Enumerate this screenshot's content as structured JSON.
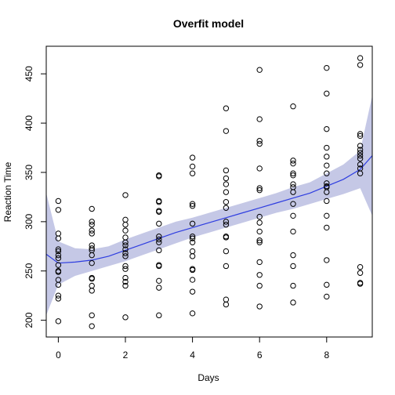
{
  "chart_data": {
    "type": "scatter",
    "title": "Overfit model",
    "xlabel": "Days",
    "ylabel": "Reaction Time",
    "xlim": [
      -0.36,
      9.36
    ],
    "ylim": [
      183,
      478
    ],
    "xticks": [
      0,
      2,
      4,
      6,
      8
    ],
    "yticks": [
      200,
      250,
      300,
      350,
      400,
      450
    ],
    "grid": false,
    "colors": {
      "points": "#000000",
      "fit": "#2e3de0",
      "band": "#c5c8e6"
    },
    "points": [
      {
        "x": 0,
        "y": 199
      },
      {
        "x": 0,
        "y": 222
      },
      {
        "x": 0,
        "y": 225
      },
      {
        "x": 0,
        "y": 236
      },
      {
        "x": 0,
        "y": 241
      },
      {
        "x": 0,
        "y": 249
      },
      {
        "x": 0,
        "y": 250
      },
      {
        "x": 0,
        "y": 256
      },
      {
        "x": 0,
        "y": 263
      },
      {
        "x": 0,
        "y": 266
      },
      {
        "x": 0,
        "y": 270
      },
      {
        "x": 0,
        "y": 272
      },
      {
        "x": 0,
        "y": 283
      },
      {
        "x": 0,
        "y": 288
      },
      {
        "x": 0,
        "y": 312
      },
      {
        "x": 0,
        "y": 321
      },
      {
        "x": 1,
        "y": 194
      },
      {
        "x": 1,
        "y": 205
      },
      {
        "x": 1,
        "y": 230
      },
      {
        "x": 1,
        "y": 235
      },
      {
        "x": 1,
        "y": 242
      },
      {
        "x": 1,
        "y": 243
      },
      {
        "x": 1,
        "y": 258
      },
      {
        "x": 1,
        "y": 266
      },
      {
        "x": 1,
        "y": 271
      },
      {
        "x": 1,
        "y": 273
      },
      {
        "x": 1,
        "y": 276
      },
      {
        "x": 1,
        "y": 288
      },
      {
        "x": 1,
        "y": 291
      },
      {
        "x": 1,
        "y": 297
      },
      {
        "x": 1,
        "y": 300
      },
      {
        "x": 1,
        "y": 313
      },
      {
        "x": 2,
        "y": 203
      },
      {
        "x": 2,
        "y": 235
      },
      {
        "x": 2,
        "y": 239
      },
      {
        "x": 2,
        "y": 243
      },
      {
        "x": 2,
        "y": 252
      },
      {
        "x": 2,
        "y": 255
      },
      {
        "x": 2,
        "y": 265
      },
      {
        "x": 2,
        "y": 268
      },
      {
        "x": 2,
        "y": 272
      },
      {
        "x": 2,
        "y": 276
      },
      {
        "x": 2,
        "y": 279
      },
      {
        "x": 2,
        "y": 284
      },
      {
        "x": 2,
        "y": 291
      },
      {
        "x": 2,
        "y": 297
      },
      {
        "x": 2,
        "y": 302
      },
      {
        "x": 2,
        "y": 327
      },
      {
        "x": 3,
        "y": 205
      },
      {
        "x": 3,
        "y": 233
      },
      {
        "x": 3,
        "y": 240
      },
      {
        "x": 3,
        "y": 255
      },
      {
        "x": 3,
        "y": 256
      },
      {
        "x": 3,
        "y": 271
      },
      {
        "x": 3,
        "y": 279
      },
      {
        "x": 3,
        "y": 282
      },
      {
        "x": 3,
        "y": 285
      },
      {
        "x": 3,
        "y": 298
      },
      {
        "x": 3,
        "y": 310
      },
      {
        "x": 3,
        "y": 311
      },
      {
        "x": 3,
        "y": 320
      },
      {
        "x": 3,
        "y": 321
      },
      {
        "x": 3,
        "y": 346
      },
      {
        "x": 3,
        "y": 347
      },
      {
        "x": 4,
        "y": 207
      },
      {
        "x": 4,
        "y": 229
      },
      {
        "x": 4,
        "y": 241
      },
      {
        "x": 4,
        "y": 251
      },
      {
        "x": 4,
        "y": 252
      },
      {
        "x": 4,
        "y": 265
      },
      {
        "x": 4,
        "y": 270
      },
      {
        "x": 4,
        "y": 279
      },
      {
        "x": 4,
        "y": 283
      },
      {
        "x": 4,
        "y": 285
      },
      {
        "x": 4,
        "y": 298
      },
      {
        "x": 4,
        "y": 316
      },
      {
        "x": 4,
        "y": 318
      },
      {
        "x": 4,
        "y": 349
      },
      {
        "x": 4,
        "y": 356
      },
      {
        "x": 4,
        "y": 365
      },
      {
        "x": 5,
        "y": 216
      },
      {
        "x": 5,
        "y": 221
      },
      {
        "x": 5,
        "y": 255
      },
      {
        "x": 5,
        "y": 270
      },
      {
        "x": 5,
        "y": 284
      },
      {
        "x": 5,
        "y": 285
      },
      {
        "x": 5,
        "y": 297
      },
      {
        "x": 5,
        "y": 300
      },
      {
        "x": 5,
        "y": 314
      },
      {
        "x": 5,
        "y": 320
      },
      {
        "x": 5,
        "y": 330
      },
      {
        "x": 5,
        "y": 338
      },
      {
        "x": 5,
        "y": 344
      },
      {
        "x": 5,
        "y": 352
      },
      {
        "x": 5,
        "y": 392
      },
      {
        "x": 5,
        "y": 415
      },
      {
        "x": 6,
        "y": 214
      },
      {
        "x": 6,
        "y": 235
      },
      {
        "x": 6,
        "y": 246
      },
      {
        "x": 6,
        "y": 259
      },
      {
        "x": 6,
        "y": 279
      },
      {
        "x": 6,
        "y": 281
      },
      {
        "x": 6,
        "y": 290
      },
      {
        "x": 6,
        "y": 299
      },
      {
        "x": 6,
        "y": 305
      },
      {
        "x": 6,
        "y": 332
      },
      {
        "x": 6,
        "y": 334
      },
      {
        "x": 6,
        "y": 354
      },
      {
        "x": 6,
        "y": 379
      },
      {
        "x": 6,
        "y": 382
      },
      {
        "x": 6,
        "y": 404
      },
      {
        "x": 6,
        "y": 454
      },
      {
        "x": 7,
        "y": 218
      },
      {
        "x": 7,
        "y": 235
      },
      {
        "x": 7,
        "y": 255
      },
      {
        "x": 7,
        "y": 266
      },
      {
        "x": 7,
        "y": 290
      },
      {
        "x": 7,
        "y": 306
      },
      {
        "x": 7,
        "y": 318
      },
      {
        "x": 7,
        "y": 330
      },
      {
        "x": 7,
        "y": 335
      },
      {
        "x": 7,
        "y": 338
      },
      {
        "x": 7,
        "y": 347
      },
      {
        "x": 7,
        "y": 349
      },
      {
        "x": 7,
        "y": 359
      },
      {
        "x": 7,
        "y": 362
      },
      {
        "x": 7,
        "y": 417
      },
      {
        "x": 8,
        "y": 224
      },
      {
        "x": 8,
        "y": 236
      },
      {
        "x": 8,
        "y": 261
      },
      {
        "x": 8,
        "y": 294
      },
      {
        "x": 8,
        "y": 306
      },
      {
        "x": 8,
        "y": 321
      },
      {
        "x": 8,
        "y": 330
      },
      {
        "x": 8,
        "y": 335
      },
      {
        "x": 8,
        "y": 336
      },
      {
        "x": 8,
        "y": 339
      },
      {
        "x": 8,
        "y": 349
      },
      {
        "x": 8,
        "y": 357
      },
      {
        "x": 8,
        "y": 366
      },
      {
        "x": 8,
        "y": 375
      },
      {
        "x": 8,
        "y": 394
      },
      {
        "x": 8,
        "y": 430
      },
      {
        "x": 8,
        "y": 456
      },
      {
        "x": 9,
        "y": 237
      },
      {
        "x": 9,
        "y": 238
      },
      {
        "x": 9,
        "y": 248
      },
      {
        "x": 9,
        "y": 254
      },
      {
        "x": 9,
        "y": 349
      },
      {
        "x": 9,
        "y": 354
      },
      {
        "x": 9,
        "y": 358
      },
      {
        "x": 9,
        "y": 364
      },
      {
        "x": 9,
        "y": 367
      },
      {
        "x": 9,
        "y": 370
      },
      {
        "x": 9,
        "y": 373
      },
      {
        "x": 9,
        "y": 377
      },
      {
        "x": 9,
        "y": 387
      },
      {
        "x": 9,
        "y": 389
      },
      {
        "x": 9,
        "y": 459
      },
      {
        "x": 9,
        "y": 466
      }
    ],
    "fit": {
      "x": [
        -0.36,
        0,
        0.5,
        1,
        1.5,
        2,
        2.5,
        3,
        3.5,
        4,
        4.5,
        5,
        5.5,
        6,
        6.5,
        7,
        7.5,
        8,
        8.5,
        9,
        9.36
      ],
      "y": [
        267,
        258,
        259,
        261,
        265,
        271,
        277,
        283,
        289,
        294,
        299,
        304,
        309,
        314,
        319,
        324,
        329,
        336,
        343,
        353,
        367
      ],
      "lower": [
        205,
        236,
        245,
        250,
        255,
        260,
        266,
        272,
        278,
        284,
        289,
        294,
        299,
        304,
        309,
        313,
        318,
        323,
        328,
        334,
        306
      ],
      "upper": [
        329,
        280,
        273,
        272,
        275,
        282,
        288,
        294,
        300,
        304,
        309,
        314,
        319,
        324,
        329,
        335,
        340,
        349,
        358,
        372,
        428
      ]
    }
  }
}
